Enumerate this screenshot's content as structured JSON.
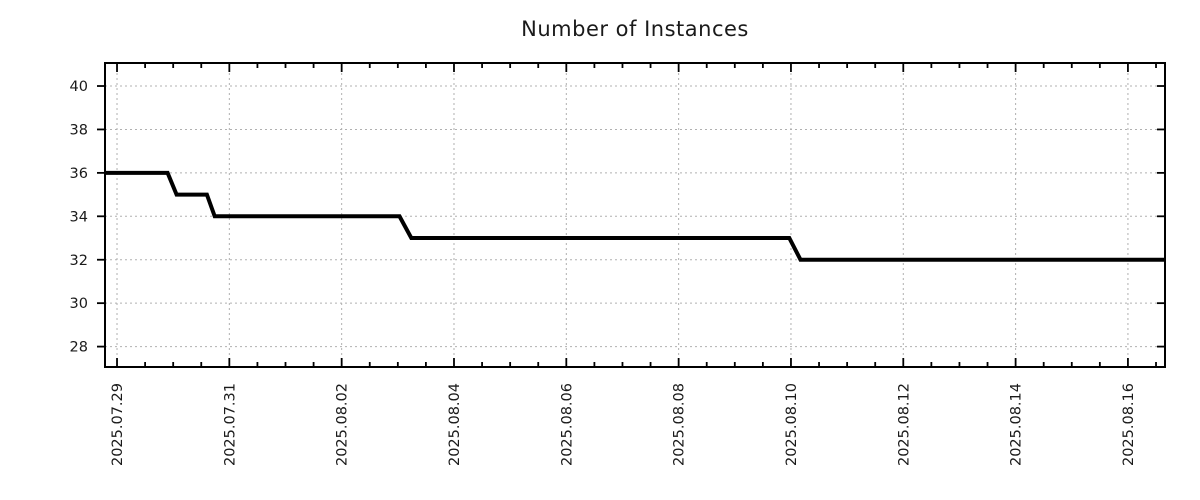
{
  "chart_data": {
    "type": "line",
    "title": "Number of Instances",
    "x_axis": {
      "label": "",
      "unit": "days since 2025.07.29 (estimated from gridlines)",
      "tick_labels": [
        "2025.07.29",
        "2025.07.31",
        "2025.08.02",
        "2025.08.04",
        "2025.08.06",
        "2025.08.08",
        "2025.08.10",
        "2025.08.12",
        "2025.08.14",
        "2025.08.16"
      ],
      "tick_offsets_days": [
        0,
        2,
        4,
        6,
        8,
        10,
        12,
        14,
        16,
        18
      ],
      "minor_tick_step_days": 0.5,
      "range_days": [
        -0.214,
        18.66
      ]
    },
    "y_axis": {
      "label": "",
      "ticks": [
        28,
        30,
        32,
        34,
        36,
        38,
        40
      ],
      "range": [
        27.06,
        41.06
      ]
    },
    "grid": {
      "show": true,
      "style": "dotted",
      "color": "#b0b0b0"
    },
    "legend": {
      "show": false
    },
    "series": [
      {
        "name": "Number of Instances",
        "color": "#000000",
        "line_width": 4,
        "points": [
          [
            -0.214,
            36
          ],
          [
            0.9,
            36
          ],
          [
            1.06,
            35
          ],
          [
            1.6,
            35
          ],
          [
            1.74,
            34
          ],
          [
            5.03,
            34
          ],
          [
            5.24,
            33
          ],
          [
            11.97,
            33
          ],
          [
            12.17,
            32
          ],
          [
            18.66,
            32
          ]
        ]
      }
    ],
    "step_summary": [
      {
        "value": 36,
        "approx_until_day_offset": 0.9
      },
      {
        "value": 35,
        "approx_until_day_offset": 1.6
      },
      {
        "value": 34,
        "approx_until_day_offset": 5.0
      },
      {
        "value": 33,
        "approx_until_day_offset": 12.0
      },
      {
        "value": 32,
        "approx_until_day_offset": 18.66
      }
    ],
    "colors": {
      "line": "#000000",
      "grid": "#b0b0b0",
      "axis": "#000000",
      "text": "#1a1a1a",
      "background": "#ffffff"
    }
  }
}
